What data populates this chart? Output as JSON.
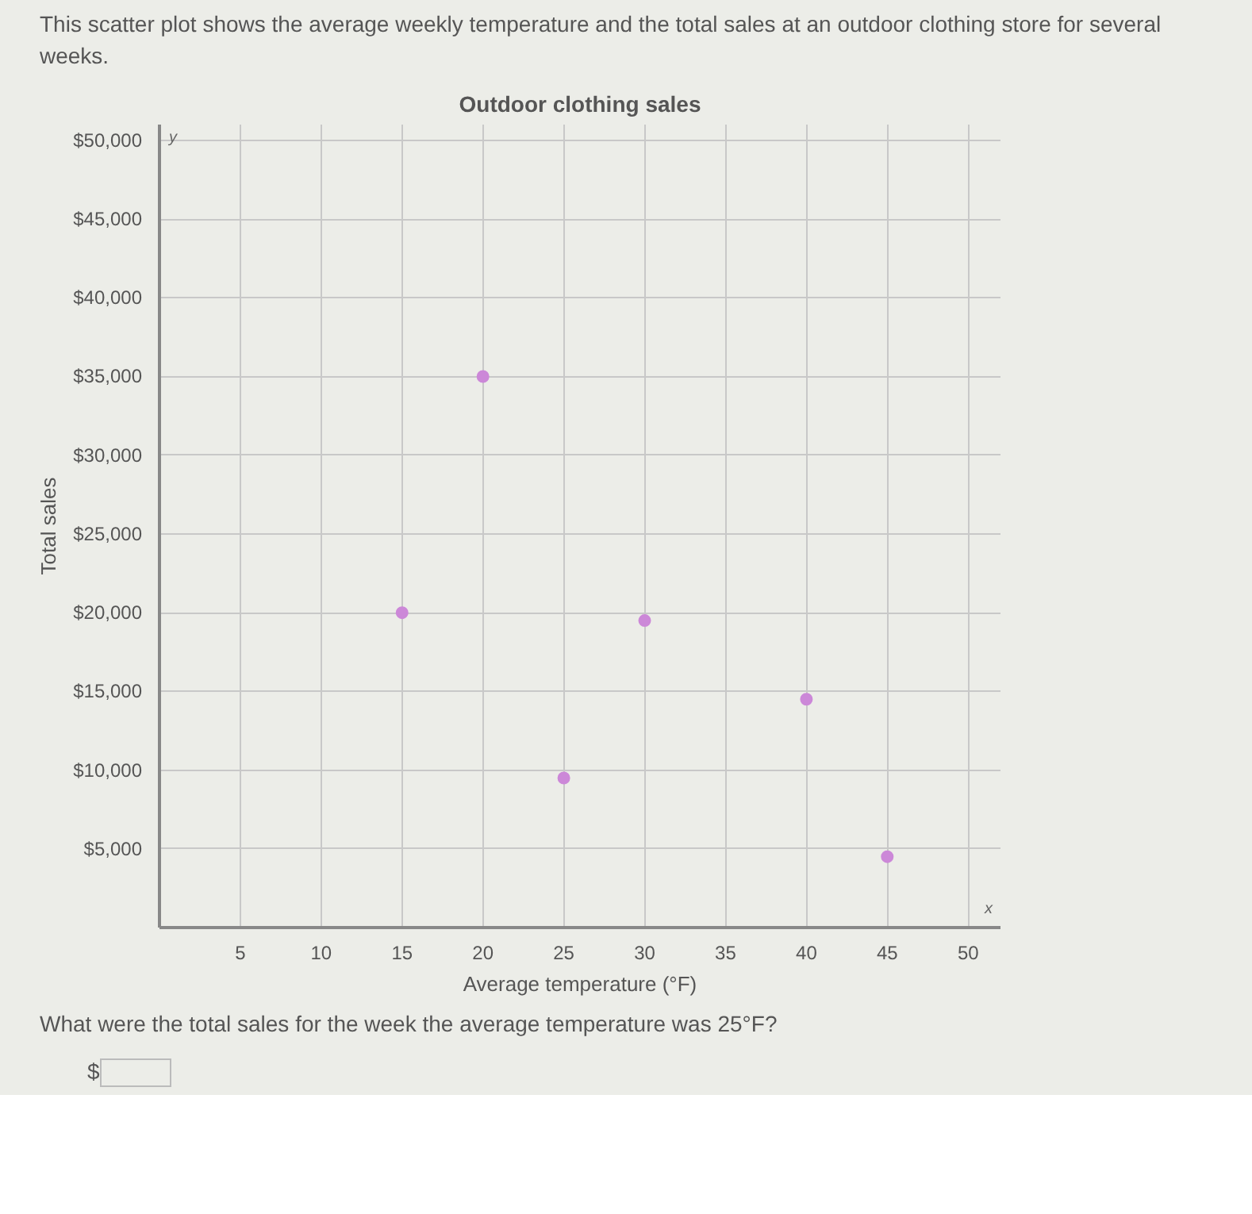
{
  "chart_data": {
    "type": "scatter",
    "title": "Outdoor clothing sales",
    "xlabel": "Average temperature (°F)",
    "ylabel": "Total sales",
    "annotations": [
      "This scatter plot shows the average weekly temperature and the total sales at an outdoor clothing store for several weeks.",
      "What were the total sales for the week the average temperature was 25°F?",
      "$",
      "y",
      "x"
    ],
    "x": [
      15,
      20,
      25,
      30,
      40,
      45
    ],
    "series": [
      {
        "color": "#cc88d8",
        "values": [
          20000,
          35000,
          9500,
          19500,
          14500,
          4500
        ]
      }
    ],
    "xlim": [
      0,
      52
    ],
    "xticks": [
      5,
      10,
      15,
      20,
      25,
      30,
      35,
      40,
      45,
      50
    ],
    "ylim": [
      0,
      51000
    ],
    "yticks": [
      {
        "value": 5000,
        "label": "$5,000"
      },
      {
        "value": 10000,
        "label": "$10,000"
      },
      {
        "value": 15000,
        "label": "$15,000"
      },
      {
        "value": 20000,
        "label": "$20,000"
      },
      {
        "value": 25000,
        "label": "$25,000"
      },
      {
        "value": 30000,
        "label": "$30,000"
      },
      {
        "value": 35000,
        "label": "$35,000"
      },
      {
        "value": 40000,
        "label": "$40,000"
      },
      {
        "value": 45000,
        "label": "$45,000"
      },
      {
        "value": 50000,
        "label": "$50,000"
      }
    ],
    "grid": true,
    "marker": "circle"
  }
}
